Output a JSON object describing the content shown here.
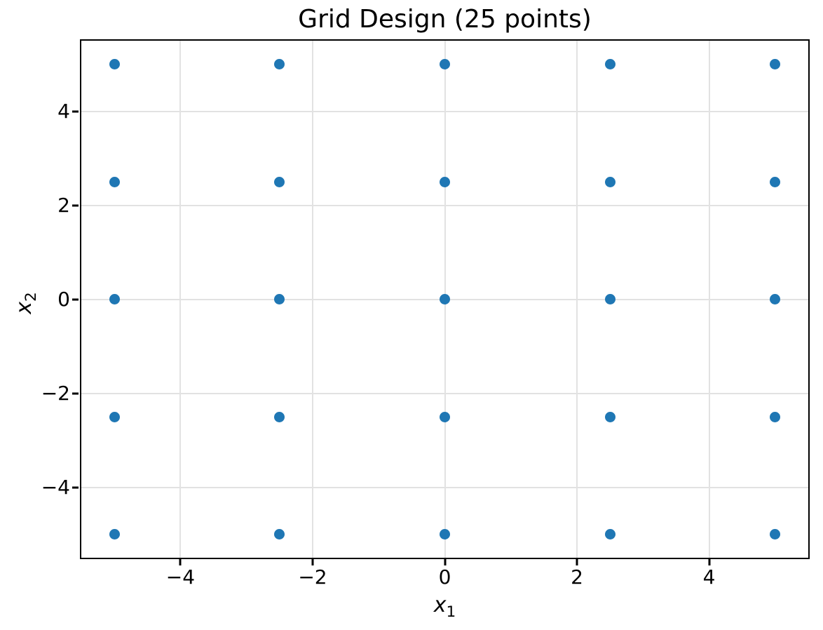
{
  "chart_data": {
    "type": "scatter",
    "title": "Grid Design (25 points)",
    "xlabel": {
      "base": "x",
      "sub": "1"
    },
    "ylabel": {
      "base": "x",
      "sub": "2"
    },
    "xlim": [
      -5.5,
      5.5
    ],
    "ylim": [
      -5.5,
      5.5
    ],
    "xticks": [
      -4,
      -2,
      0,
      2,
      4
    ],
    "xtick_labels": [
      "−4",
      "−2",
      "0",
      "2",
      "4"
    ],
    "yticks": [
      -4,
      -2,
      0,
      2,
      4
    ],
    "ytick_labels": [
      "−4",
      "−2",
      "0",
      "2",
      "4"
    ],
    "grid": true,
    "legend": null,
    "marker_color": "#1f77b4",
    "grid_color": "#e2e2e2",
    "spine_color": "#000000",
    "points": [
      [
        -5,
        -5
      ],
      [
        -5,
        -2.5
      ],
      [
        -5,
        0
      ],
      [
        -5,
        2.5
      ],
      [
        -5,
        5
      ],
      [
        -2.5,
        -5
      ],
      [
        -2.5,
        -2.5
      ],
      [
        -2.5,
        0
      ],
      [
        -2.5,
        2.5
      ],
      [
        -2.5,
        5
      ],
      [
        0,
        -5
      ],
      [
        0,
        -2.5
      ],
      [
        0,
        0
      ],
      [
        0,
        2.5
      ],
      [
        0,
        5
      ],
      [
        2.5,
        -5
      ],
      [
        2.5,
        -2.5
      ],
      [
        2.5,
        0
      ],
      [
        2.5,
        2.5
      ],
      [
        2.5,
        5
      ],
      [
        5,
        -5
      ],
      [
        5,
        -2.5
      ],
      [
        5,
        0
      ],
      [
        5,
        2.5
      ],
      [
        5,
        5
      ]
    ]
  }
}
